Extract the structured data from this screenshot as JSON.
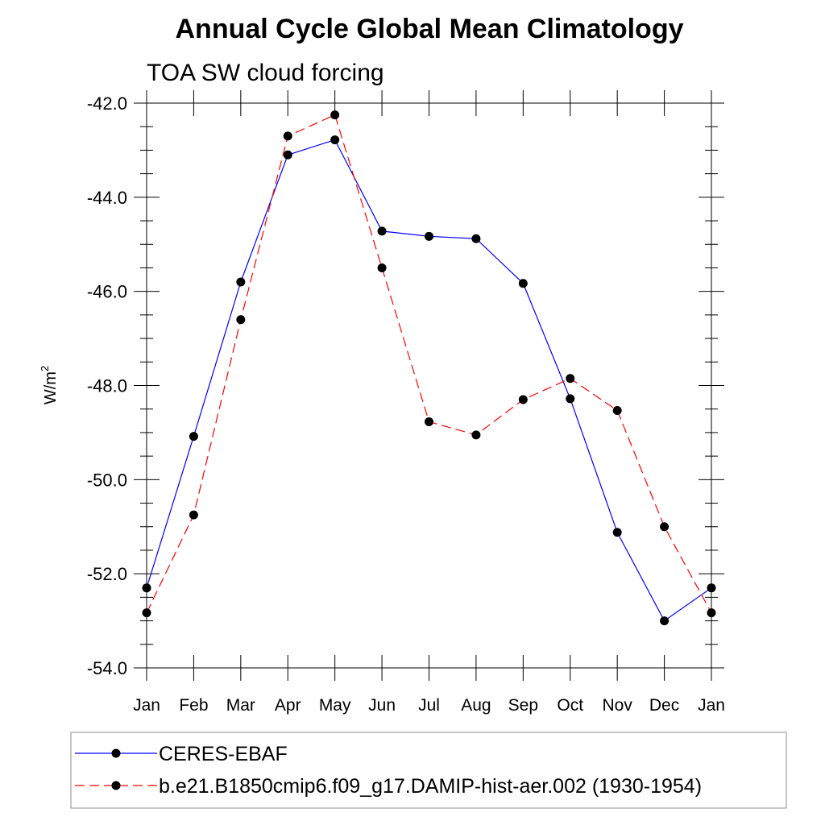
{
  "chart_data": {
    "type": "line",
    "title": "Annual Cycle Global Mean Climatology",
    "subtitle": "TOA SW cloud forcing",
    "ylabel_base": "W/m",
    "ylabel_sup": "2",
    "xlabel": "",
    "categories": [
      "Jan",
      "Feb",
      "Mar",
      "Apr",
      "May",
      "Jun",
      "Jul",
      "Aug",
      "Sep",
      "Oct",
      "Nov",
      "Dec",
      "Jan"
    ],
    "ylim": [
      -54.0,
      -42.0
    ],
    "yticks": [
      "-42.0",
      "-44.0",
      "-46.0",
      "-48.0",
      "-50.0",
      "-52.0",
      "-54.0"
    ],
    "yticks_values": [
      -42,
      -44,
      -46,
      -48,
      -50,
      -52,
      -54
    ],
    "grid": false,
    "legend_position": "bottom",
    "series": [
      {
        "name": "CERES-EBAF",
        "color": "#0000ff",
        "dash": "solid",
        "values": [
          -52.3,
          -49.08,
          -45.8,
          -43.1,
          -42.78,
          -44.72,
          -44.83,
          -44.88,
          -45.83,
          -48.28,
          -51.12,
          -53.0,
          -52.3
        ]
      },
      {
        "name": "b.e21.B1850cmip6.f09_g17.DAMIP-hist-aer.002 (1930-1954)",
        "color": "#ff0000",
        "dash": "dashed",
        "values": [
          -52.83,
          -50.75,
          -46.6,
          -42.7,
          -42.25,
          -45.5,
          -48.77,
          -49.05,
          -48.3,
          -47.85,
          -48.53,
          -51.0,
          -52.83
        ]
      }
    ]
  }
}
